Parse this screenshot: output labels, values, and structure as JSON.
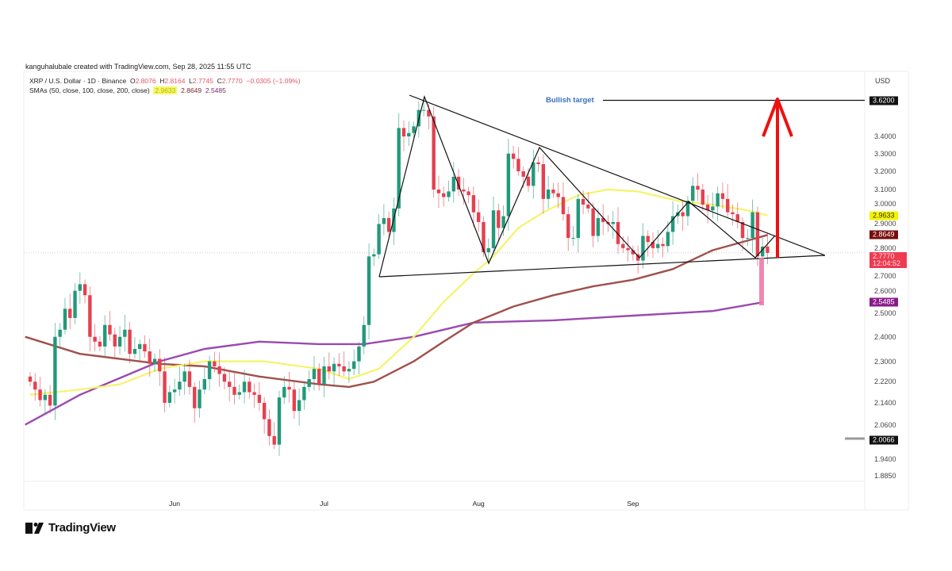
{
  "credit": "kanguhalubale created with TradingView.com, Sep 28, 2025 11:55 UTC",
  "legend": {
    "symbol": "XRP / U.S. Dollar · 1D · Binance",
    "o_label": "O",
    "o": "2.8076",
    "h_label": "H",
    "h": "2.8164",
    "l_label": "L",
    "l": "2.7745",
    "c_label": "C",
    "c": "2.7770",
    "change": "−0.0305 (−1.09%)",
    "sma_label": "SMAs (50, close, 100, close, 200, close)",
    "sma50": "2.9633",
    "sma100": "2.8649",
    "sma200": "2.5485"
  },
  "annotation": {
    "bullish_target": "Bullish target"
  },
  "colors": {
    "up": "#22997a",
    "down": "#e5404f",
    "sma50": "#f4f46a",
    "sma100": "#a0504a",
    "sma200": "#9a4ab0",
    "arrow": "#ee1111",
    "target_label": "#3a6fc4"
  },
  "brand": "TradingView",
  "chart_data": {
    "type": "candlestick",
    "title": "XRP / U.S. Dollar · 1D · Binance",
    "ylabel": "USD",
    "y_scale": "log",
    "ylim": [
      1.885,
      3.72
    ],
    "y_ticks": [
      "3.4000",
      "3.3000",
      "3.2000",
      "3.1000",
      "3.0000",
      "2.9000",
      "2.8000",
      "2.7000",
      "2.6000",
      "2.5000",
      "2.4000",
      "2.3000",
      "2.2200",
      "2.1400",
      "2.0600",
      "1.9400",
      "1.8850"
    ],
    "x_ticks": [
      {
        "label": "Jun",
        "day": 29
      },
      {
        "label": "Jul",
        "day": 59
      },
      {
        "label": "Aug",
        "day": 90
      },
      {
        "label": "Sep",
        "day": 121
      }
    ],
    "start_date": "May 3",
    "closes": [
      2.22,
      2.19,
      2.15,
      2.17,
      2.13,
      2.4,
      2.43,
      2.52,
      2.48,
      2.6,
      2.63,
      2.58,
      2.4,
      2.38,
      2.36,
      2.45,
      2.41,
      2.36,
      2.4,
      2.43,
      2.33,
      2.35,
      2.37,
      2.34,
      2.29,
      2.31,
      2.26,
      2.14,
      2.18,
      2.19,
      2.22,
      2.26,
      2.2,
      2.12,
      2.19,
      2.23,
      2.3,
      2.28,
      2.25,
      2.22,
      2.2,
      2.17,
      2.18,
      2.22,
      2.18,
      2.17,
      2.14,
      2.08,
      2.02,
      1.99,
      2.16,
      2.2,
      2.19,
      2.11,
      2.15,
      2.2,
      2.23,
      2.27,
      2.21,
      2.28,
      2.26,
      2.29,
      2.28,
      2.26,
      2.27,
      2.3,
      2.36,
      2.45,
      2.76,
      2.77,
      2.92,
      2.95,
      2.88,
      3.0,
      3.45,
      3.4,
      3.42,
      3.46,
      3.56,
      3.56,
      3.52,
      3.1,
      3.08,
      3.06,
      3.09,
      3.17,
      3.1,
      3.09,
      3.07,
      2.98,
      2.93,
      2.78,
      2.8,
      2.99,
      2.9,
      2.96,
      3.3,
      3.27,
      3.2,
      3.17,
      3.12,
      3.25,
      3.24,
      3.05,
      3.1,
      3.08,
      3.06,
      2.97,
      2.85,
      2.85,
      3.05,
      3.02,
      3.0,
      2.86,
      2.95,
      2.93,
      2.92,
      2.93,
      2.82,
      2.8,
      2.79,
      2.77,
      2.74,
      2.86,
      2.83,
      2.8,
      2.82,
      2.81,
      2.88,
      2.96,
      2.98,
      2.96,
      3.04,
      3.12,
      3.1,
      3.02,
      2.99,
      3.01,
      3.08,
      3.05,
      2.98,
      2.97,
      2.93,
      2.85,
      2.85,
      2.98,
      2.76,
      2.8076,
      2.777
    ],
    "series": [
      {
        "name": "SMA 50",
        "value": 2.9633,
        "points": [
          [
            0,
            2.17
          ],
          [
            10,
            2.19
          ],
          [
            18,
            2.21
          ],
          [
            26,
            2.27
          ],
          [
            35,
            2.3
          ],
          [
            47,
            2.3
          ],
          [
            58,
            2.27
          ],
          [
            64,
            2.23
          ],
          [
            70,
            2.27
          ],
          [
            77,
            2.4
          ],
          [
            83,
            2.55
          ],
          [
            89,
            2.68
          ],
          [
            93,
            2.76
          ],
          [
            98,
            2.9
          ],
          [
            103,
            2.98
          ],
          [
            110,
            3.07
          ],
          [
            116,
            3.1
          ],
          [
            122,
            3.09
          ],
          [
            130,
            3.04
          ],
          [
            137,
            3.02
          ],
          [
            144,
            2.99
          ],
          [
            148,
            2.9633
          ]
        ]
      },
      {
        "name": "SMA 100",
        "value": 2.8649,
        "points": [
          [
            -1,
            2.4
          ],
          [
            10,
            2.33
          ],
          [
            26,
            2.29
          ],
          [
            35,
            2.28
          ],
          [
            46,
            2.24
          ],
          [
            58,
            2.21
          ],
          [
            64,
            2.2
          ],
          [
            69,
            2.22
          ],
          [
            77,
            2.3
          ],
          [
            83,
            2.38
          ],
          [
            89,
            2.46
          ],
          [
            97,
            2.53
          ],
          [
            105,
            2.58
          ],
          [
            113,
            2.62
          ],
          [
            121,
            2.65
          ],
          [
            129,
            2.7
          ],
          [
            137,
            2.79
          ],
          [
            143,
            2.83
          ],
          [
            148,
            2.8649
          ]
        ]
      },
      {
        "name": "SMA 200",
        "value": 2.5485,
        "points": [
          [
            -1,
            2.06
          ],
          [
            10,
            2.17
          ],
          [
            26,
            2.3
          ],
          [
            35,
            2.35
          ],
          [
            46,
            2.38
          ],
          [
            58,
            2.37
          ],
          [
            67,
            2.37
          ],
          [
            77,
            2.4
          ],
          [
            89,
            2.46
          ],
          [
            105,
            2.47
          ],
          [
            121,
            2.49
          ],
          [
            137,
            2.51
          ],
          [
            147,
            2.5485
          ]
        ]
      }
    ],
    "price_tags": {
      "bullish_target": "3.6200",
      "last": "2.7770",
      "countdown": "12:04:52",
      "sma50": "2.9633",
      "sma100": "2.8649",
      "sma200": "2.5485",
      "low_marker": "2.0066"
    },
    "target_price": 3.62,
    "last_price": 2.777
  }
}
